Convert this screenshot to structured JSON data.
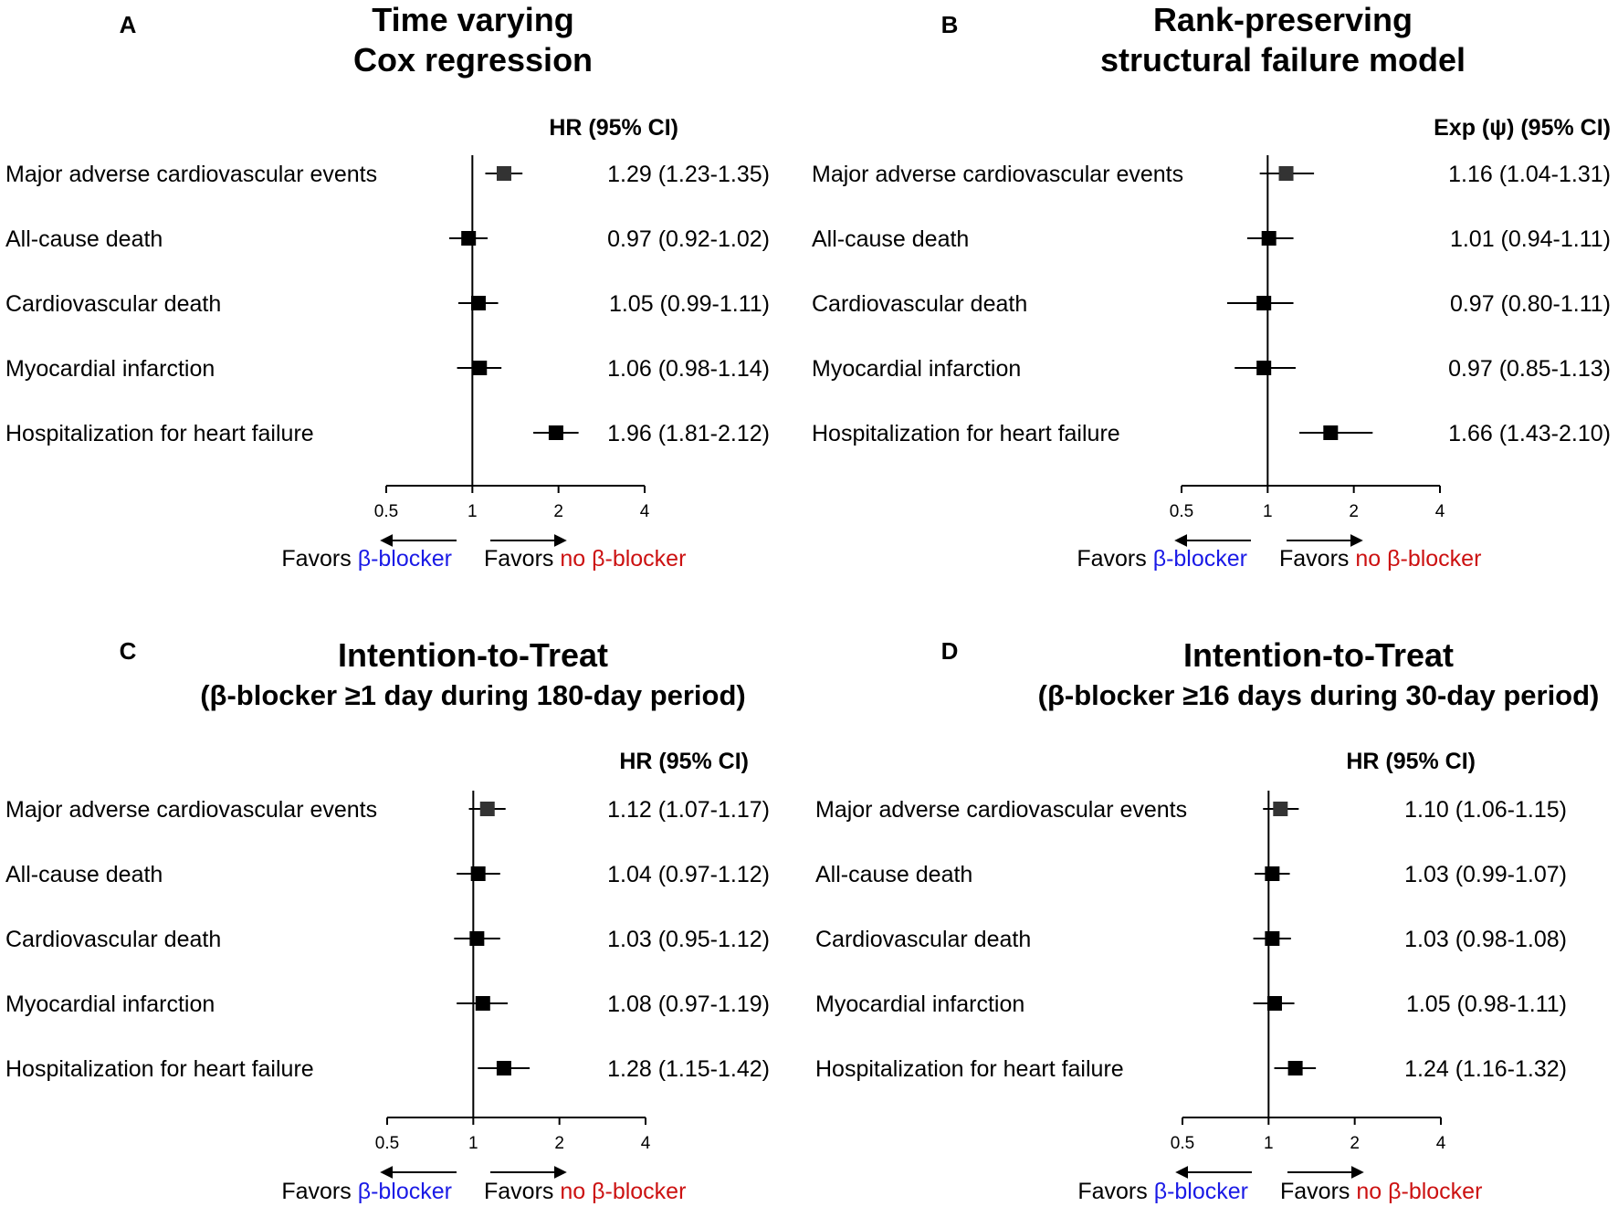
{
  "figure_colors": {
    "text": "#000000",
    "beta_blocker": "#1a1ae6",
    "no_beta_blocker": "#cc1111",
    "mace_marker": "#333333",
    "marker": "#000000"
  },
  "chart_data": [
    {
      "panel": "A",
      "type": "forest",
      "title_line1": "Time varying",
      "title_line2": "Cox regression",
      "column_header": "HR (95% CI)",
      "x_scale": "log2",
      "ticks": [
        0.5,
        1,
        2,
        4
      ],
      "tick_labels": [
        "0.5",
        "1",
        "2",
        "4"
      ],
      "xlim": [
        0.5,
        4
      ],
      "favors_left_prefix": "Favors",
      "favors_left_colored": "β-blocker",
      "favors_right_prefix": "Favors",
      "favors_right_colored": "no β-blocker",
      "rows": [
        {
          "label": "Major adverse cardiovascular events",
          "estimate": 1.29,
          "lower": 1.23,
          "upper": 1.35,
          "text": "1.29 (1.23-1.35)"
        },
        {
          "label": "All-cause death",
          "estimate": 0.97,
          "lower": 0.92,
          "upper": 1.02,
          "text": "0.97 (0.92-1.02)"
        },
        {
          "label": "Cardiovascular death",
          "estimate": 1.05,
          "lower": 0.99,
          "upper": 1.11,
          "text": "1.05 (0.99-1.11)"
        },
        {
          "label": "Myocardial infarction",
          "estimate": 1.06,
          "lower": 0.98,
          "upper": 1.14,
          "text": "1.06 (0.98-1.14)"
        },
        {
          "label": "Hospitalization for heart failure",
          "estimate": 1.96,
          "lower": 1.81,
          "upper": 2.12,
          "text": "1.96 (1.81-2.12)"
        }
      ]
    },
    {
      "panel": "B",
      "type": "forest",
      "title_line1": "Rank-preserving",
      "title_line2": "structural failure model",
      "column_header": "Exp (ψ) (95% CI)",
      "x_scale": "log2",
      "ticks": [
        0.5,
        1,
        2,
        4
      ],
      "tick_labels": [
        "0.5",
        "1",
        "2",
        "4"
      ],
      "xlim": [
        0.5,
        4
      ],
      "favors_left_prefix": "Favors",
      "favors_left_colored": "β-blocker",
      "favors_right_prefix": "Favors",
      "favors_right_colored": "no β-blocker",
      "rows": [
        {
          "label": "Major adverse cardiovascular events",
          "estimate": 1.16,
          "lower": 1.04,
          "upper": 1.31,
          "text": "1.16 (1.04-1.31)"
        },
        {
          "label": "All-cause death",
          "estimate": 1.01,
          "lower": 0.94,
          "upper": 1.11,
          "text": "1.01 (0.94-1.11)"
        },
        {
          "label": "Cardiovascular death",
          "estimate": 0.97,
          "lower": 0.8,
          "upper": 1.11,
          "text": "0.97 (0.80-1.11)"
        },
        {
          "label": "Myocardial infarction",
          "estimate": 0.97,
          "lower": 0.85,
          "upper": 1.13,
          "text": "0.97 (0.85-1.13)"
        },
        {
          "label": "Hospitalization for heart failure",
          "estimate": 1.66,
          "lower": 1.43,
          "upper": 2.1,
          "text": "1.66 (1.43-2.10)"
        }
      ]
    },
    {
      "panel": "C",
      "type": "forest",
      "title_line1": "Intention-to-Treat",
      "title_line2": "(β-blocker ≥1 day during 180-day period)",
      "column_header": "HR (95% CI)",
      "x_scale": "log2",
      "ticks": [
        0.5,
        1,
        2,
        4
      ],
      "tick_labels": [
        "0.5",
        "1",
        "2",
        "4"
      ],
      "xlim": [
        0.5,
        4
      ],
      "favors_left_prefix": "Favors",
      "favors_left_colored": "β-blocker",
      "favors_right_prefix": "Favors",
      "favors_right_colored": "no β-blocker",
      "rows": [
        {
          "label": "Major adverse cardiovascular events",
          "estimate": 1.12,
          "lower": 1.07,
          "upper": 1.17,
          "text": "1.12 (1.07-1.17)"
        },
        {
          "label": "All-cause death",
          "estimate": 1.04,
          "lower": 0.97,
          "upper": 1.12,
          "text": "1.04 (0.97-1.12)"
        },
        {
          "label": "Cardiovascular death",
          "estimate": 1.03,
          "lower": 0.95,
          "upper": 1.12,
          "text": "1.03 (0.95-1.12)"
        },
        {
          "label": "Myocardial infarction",
          "estimate": 1.08,
          "lower": 0.97,
          "upper": 1.19,
          "text": "1.08 (0.97-1.19)"
        },
        {
          "label": "Hospitalization for heart failure",
          "estimate": 1.28,
          "lower": 1.15,
          "upper": 1.42,
          "text": "1.28 (1.15-1.42)"
        }
      ]
    },
    {
      "panel": "D",
      "type": "forest",
      "title_line1": "Intention-to-Treat",
      "title_line2": "(β-blocker ≥16 days during 30-day period)",
      "column_header": "HR (95% CI)",
      "x_scale": "log2",
      "ticks": [
        0.5,
        1,
        2,
        4
      ],
      "tick_labels": [
        "0.5",
        "1",
        "2",
        "4"
      ],
      "xlim": [
        0.5,
        4
      ],
      "favors_left_prefix": "Favors",
      "favors_left_colored": "β-blocker",
      "favors_right_prefix": "Favors",
      "favors_right_colored": "no β-blocker",
      "rows": [
        {
          "label": "Major adverse cardiovascular events",
          "estimate": 1.1,
          "lower": 1.06,
          "upper": 1.15,
          "text": "1.10 (1.06-1.15)"
        },
        {
          "label": "All-cause death",
          "estimate": 1.03,
          "lower": 0.99,
          "upper": 1.07,
          "text": "1.03 (0.99-1.07)"
        },
        {
          "label": "Cardiovascular death",
          "estimate": 1.03,
          "lower": 0.98,
          "upper": 1.08,
          "text": "1.03 (0.98-1.08)"
        },
        {
          "label": "Myocardial infarction",
          "estimate": 1.05,
          "lower": 0.98,
          "upper": 1.11,
          "text": "1.05 (0.98-1.11)"
        },
        {
          "label": "Hospitalization for heart failure",
          "estimate": 1.24,
          "lower": 1.16,
          "upper": 1.32,
          "text": "1.24 (1.16-1.32)"
        }
      ]
    }
  ]
}
